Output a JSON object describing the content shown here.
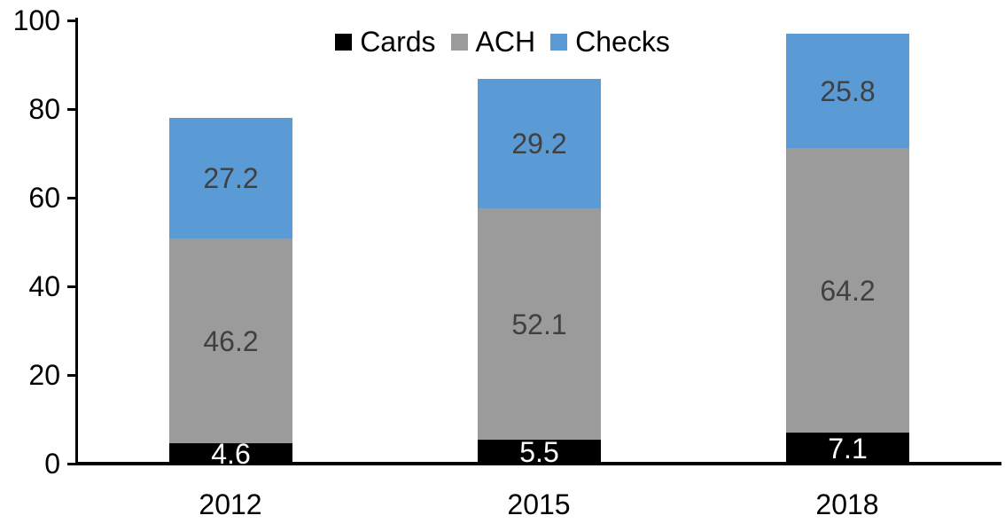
{
  "chart_data": {
    "type": "bar",
    "stacked": true,
    "title": "",
    "xlabel": "",
    "ylabel": "",
    "categories": [
      "2012",
      "2015",
      "2018"
    ],
    "series": [
      {
        "name": "Cards",
        "values": [
          4.6,
          5.5,
          7.1
        ],
        "color": "#000000",
        "label_color": "#ffffff"
      },
      {
        "name": "ACH",
        "values": [
          46.2,
          52.1,
          64.2
        ],
        "color": "#9b9b9b",
        "label_color": "#404040"
      },
      {
        "name": "Checks",
        "values": [
          27.2,
          29.2,
          25.8
        ],
        "color": "#5b9bd5",
        "label_color": "#404040"
      }
    ],
    "totals": [
      78.0,
      86.8,
      97.1
    ],
    "ylim": [
      0,
      100
    ],
    "yticks": [
      0,
      20,
      40,
      60,
      80,
      100
    ],
    "grid": false,
    "data_labels": true,
    "legend_position": "top-center",
    "axis_color": "#000000",
    "text_color": "#000000",
    "background_color": "#ffffff"
  }
}
